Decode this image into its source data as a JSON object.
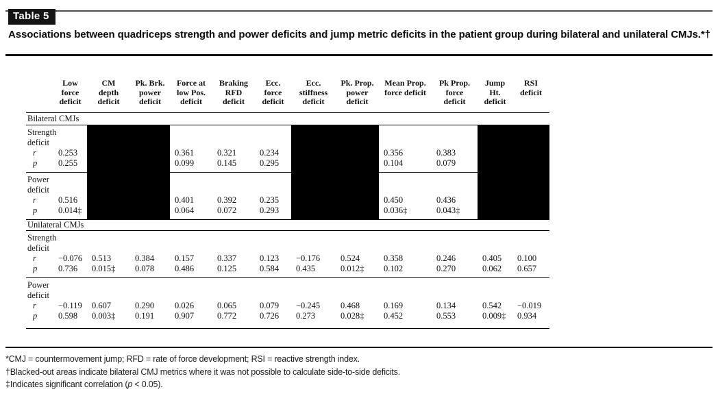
{
  "badge": "Table 5",
  "title": "Associations between quadriceps strength and power deficits and jump metric deficits in the patient group during bilateral and unilateral CMJs.*†",
  "colors": {
    "blacked_cell": "#000000",
    "rule": "#111111",
    "badge_bg": "#141414"
  },
  "table": {
    "headers": [
      "Low\nforce\ndeficit",
      "CM\ndepth\ndeficit",
      "Pk. Brk.\npower\ndeficit",
      "Force at\nlow Pos.\ndeficit",
      "Braking\nRFD\ndeficit",
      "Ecc.\nforce\ndeficit",
      "Ecc.\nstiffness\ndeficit",
      "Pk. Prop.\npower\ndeficit",
      "Mean Prop.\nforce deficit",
      "Pk Prop.\nforce\ndeficit",
      "Jump\nHt.\ndeficit",
      "RSI\ndeficit"
    ],
    "stat_labels": [
      "r",
      "p"
    ],
    "sections": [
      {
        "label": "Bilateral CMJs",
        "rows": [
          {
            "label_lines": [
              "Strength",
              "deficit"
            ],
            "blacked_columns": [
              1,
              2,
              6,
              7,
              10,
              11
            ],
            "r": [
              "0.253",
              "",
              "",
              "0.361",
              "0.321",
              "0.234",
              "",
              "",
              "0.356",
              "0.383",
              "",
              ""
            ],
            "p": [
              "0.255",
              "",
              "",
              "0.099",
              "0.145",
              "0.295",
              "",
              "",
              "0.104",
              "0.079",
              "",
              ""
            ]
          },
          {
            "label_lines": [
              "Power",
              "deficit"
            ],
            "blacked_columns": [
              1,
              2,
              6,
              7,
              10,
              11
            ],
            "r": [
              "0.516",
              "",
              "",
              "0.401",
              "0.392",
              "0.235",
              "",
              "",
              "0.450",
              "0.436",
              "",
              ""
            ],
            "p": [
              "0.014‡",
              "",
              "",
              "0.064",
              "0.072",
              "0.293",
              "",
              "",
              "0.036‡",
              "0.043‡",
              "",
              ""
            ]
          }
        ]
      },
      {
        "label": "Unilateral CMJs",
        "rows": [
          {
            "label_lines": [
              "Strength",
              "deficit"
            ],
            "blacked_columns": [],
            "r": [
              "−0.076",
              "0.513",
              "0.384",
              "0.157",
              "0.337",
              "0.123",
              "−0.176",
              "0.524",
              "0.358",
              "0.246",
              "0.405",
              "0.100"
            ],
            "p": [
              "0.736",
              "0.015‡",
              "0.078",
              "0.486",
              "0.125",
              "0.584",
              "0.435",
              "0.012‡",
              "0.102",
              "0.270",
              "0.062",
              "0.657"
            ]
          },
          {
            "label_lines": [
              "Power",
              "deficit"
            ],
            "blacked_columns": [],
            "r": [
              "−0.119",
              "0.607",
              "0.290",
              "0.026",
              "0.065",
              "0.079",
              "−0.245",
              "0.468",
              "0.169",
              "0.134",
              "0.542",
              "−0.019"
            ],
            "p": [
              "0.598",
              "0.003‡",
              "0.191",
              "0.907",
              "0.772",
              "0.726",
              "0.273",
              "0.028‡",
              "0.452",
              "0.553",
              "0.009‡",
              "0.934"
            ]
          }
        ]
      }
    ]
  },
  "footnotes": [
    [
      {
        "text": "*CMJ = countermovement jump; RFD = rate of force development; RSI = reactive strength index."
      }
    ],
    [
      {
        "text": "†Blacked-out areas indicate bilateral CMJ metrics where it was not possible to calculate side-to-side deficits."
      }
    ],
    [
      {
        "text": "‡Indicates significant correlation ("
      },
      {
        "text": "p",
        "italic": true
      },
      {
        "text": " < 0.05)."
      }
    ]
  ]
}
